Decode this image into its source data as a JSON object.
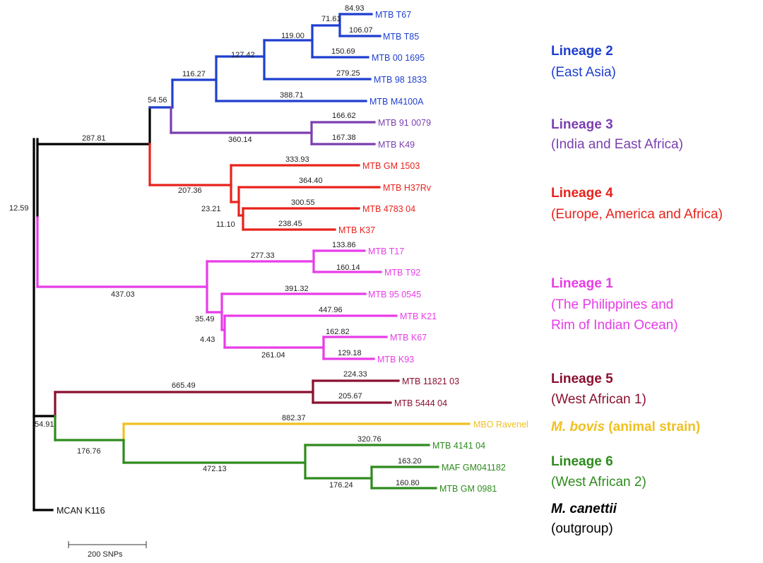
{
  "colors": {
    "lineage2": "#1f3fcf",
    "lineage3": "#7b3fb0",
    "lineage4": "#e8231c",
    "lineage1": "#e83ce8",
    "lineage5": "#8a1030",
    "bovis": "#f0c020",
    "lineage6": "#2e8b1e",
    "canettii": "#000000",
    "branch_root": "#000000",
    "label_text": "#222222"
  },
  "scale_bar": {
    "label": "200 SNPs"
  },
  "taxa": [
    {
      "id": "t67",
      "label": "MTB T67",
      "lineage": "lineage2"
    },
    {
      "id": "t85",
      "label": "MTB T85",
      "lineage": "lineage2"
    },
    {
      "id": "m001695",
      "label": "MTB 00 1695",
      "lineage": "lineage2"
    },
    {
      "id": "m981833",
      "label": "MTB 98 1833",
      "lineage": "lineage2"
    },
    {
      "id": "m4100a",
      "label": "MTB M4100A",
      "lineage": "lineage2"
    },
    {
      "id": "m910079",
      "label": "MTB 91 0079",
      "lineage": "lineage3"
    },
    {
      "id": "k49",
      "label": "MTB K49",
      "lineage": "lineage3"
    },
    {
      "id": "gm1503",
      "label": "MTB GM 1503",
      "lineage": "lineage4"
    },
    {
      "id": "h37rv",
      "label": "MTB H37Rv",
      "lineage": "lineage4"
    },
    {
      "id": "m478304",
      "label": "MTB 4783 04",
      "lineage": "lineage4"
    },
    {
      "id": "k37",
      "label": "MTB K37",
      "lineage": "lineage4"
    },
    {
      "id": "t17",
      "label": "MTB T17",
      "lineage": "lineage1"
    },
    {
      "id": "t92",
      "label": "MTB T92",
      "lineage": "lineage1"
    },
    {
      "id": "m950545",
      "label": "MTB 95 0545",
      "lineage": "lineage1"
    },
    {
      "id": "k21",
      "label": "MTB K21",
      "lineage": "lineage1"
    },
    {
      "id": "k67",
      "label": "MTB K67",
      "lineage": "lineage1"
    },
    {
      "id": "k93",
      "label": "MTB K93",
      "lineage": "lineage1"
    },
    {
      "id": "m1182103",
      "label": "MTB 11821 03",
      "lineage": "lineage5"
    },
    {
      "id": "m544404",
      "label": "MTB 5444 04",
      "lineage": "lineage5"
    },
    {
      "id": "ravenel",
      "label": "MBO Ravenel",
      "lineage": "bovis"
    },
    {
      "id": "m414104",
      "label": "MTB 4141 04",
      "lineage": "lineage6"
    },
    {
      "id": "gm041182",
      "label": "MAF GM041182",
      "lineage": "lineage6"
    },
    {
      "id": "gm0981",
      "label": "MTB GM 0981",
      "lineage": "lineage6"
    },
    {
      "id": "k116",
      "label": "MCAN K116",
      "lineage": "canettii"
    }
  ],
  "branch_lengths": [
    "84.93",
    "71.61",
    "106.07",
    "119.00",
    "150.69",
    "127.42",
    "279.25",
    "116.27",
    "388.71",
    "54.56",
    "166.62",
    "360.14",
    "167.38",
    "287.81",
    "333.93",
    "364.40",
    "207.36",
    "23.21",
    "300.55",
    "11.10",
    "238.45",
    "12.59",
    "133.86",
    "277.33",
    "160.14",
    "437.03",
    "391.32",
    "447.96",
    "35.49",
    "4.43",
    "162.82",
    "261.04",
    "129.18",
    "224.33",
    "665.49",
    "205.67",
    "882.37",
    "54.91",
    "176.76",
    "320.76",
    "163.20",
    "472.13",
    "176.24",
    "160.80"
  ],
  "legend": [
    {
      "key": "lineage2",
      "title": "Lineage 2",
      "sub": [
        "(East Asia)"
      ]
    },
    {
      "key": "lineage3",
      "title": "Lineage 3",
      "sub": [
        "(India and East Africa)"
      ]
    },
    {
      "key": "lineage4",
      "title": "Lineage 4",
      "sub": [
        "(Europe, America and Africa)"
      ]
    },
    {
      "key": "lineage1",
      "title": "Lineage 1",
      "sub": [
        "(The Philippines and",
        "Rim of Indian Ocean)"
      ]
    },
    {
      "key": "lineage5",
      "title": "Lineage 5",
      "sub": [
        "(West African 1)"
      ]
    },
    {
      "key": "bovis",
      "title_italic": "M. bovis",
      "title_rest": " (animal strain)",
      "sub": []
    },
    {
      "key": "lineage6",
      "title": "Lineage 6",
      "sub": [
        "(West African 2)"
      ]
    },
    {
      "key": "canettii",
      "title_italic": "M. canettii",
      "sub": [
        "(outgroup)"
      ]
    }
  ]
}
